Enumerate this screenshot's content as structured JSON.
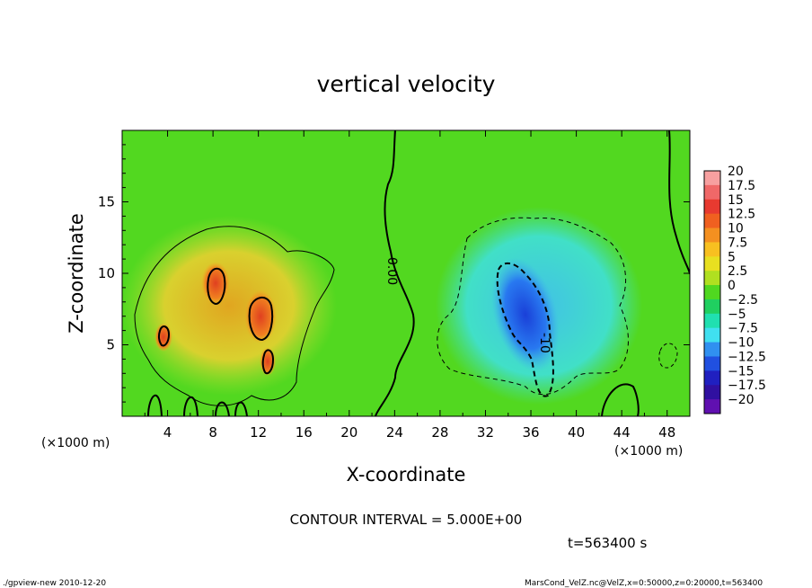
{
  "chart_data": {
    "type": "heatmap",
    "title": "vertical velocity",
    "xlabel": "X-coordinate",
    "ylabel": "Z-coordinate",
    "x_unit": "(×1000 m)",
    "x_unit_right": "(×1000 m)",
    "xlim": [
      0,
      50
    ],
    "ylim": [
      0,
      20
    ],
    "x_ticks": [
      4,
      8,
      12,
      16,
      20,
      24,
      28,
      32,
      36,
      40,
      44,
      48
    ],
    "y_ticks": [
      5,
      10,
      15
    ],
    "colorbar": {
      "labels": [
        "20",
        "17.5",
        "15",
        "12.5",
        "10",
        "7.5",
        "5",
        "2.5",
        "0",
        "−2.5",
        "−5",
        "−7.5",
        "−10",
        "−12.5",
        "−15",
        "−17.5",
        "−20"
      ],
      "colors": [
        "#f7a0a0",
        "#f06868",
        "#e83a30",
        "#f06020",
        "#f49020",
        "#f8c020",
        "#e8e020",
        "#b0e020",
        "#50d820",
        "#20d060",
        "#20e0b0",
        "#40e0f0",
        "#3090f0",
        "#2050e0",
        "#2020c0",
        "#3010a0",
        "#6010b0"
      ]
    },
    "contour_labels": [
      "0.00",
      "-10"
    ],
    "contour_interval": "CONTOUR INTERVAL = 5.000E+00",
    "time": "t=563400  s"
  },
  "footer": {
    "left": "./gpview-new   2010-12-20",
    "right": "MarsCond_VelZ.nc@VelZ,x=0:50000,z=0:20000,t=563400"
  }
}
